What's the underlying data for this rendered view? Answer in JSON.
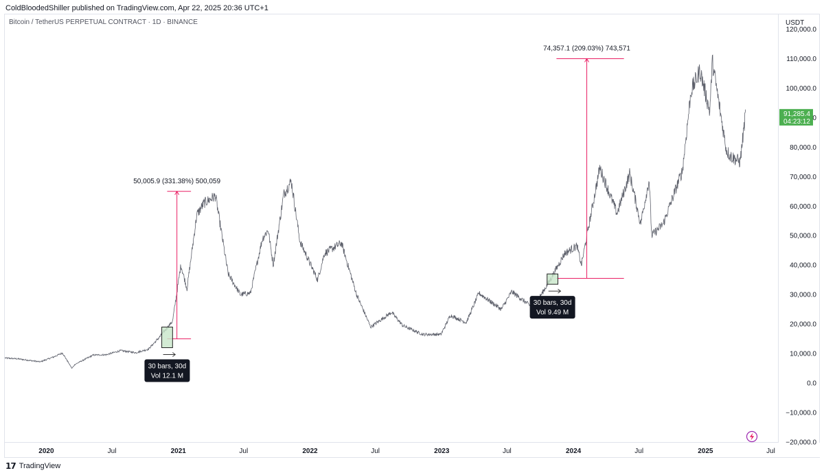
{
  "header": {
    "published": "ColdBloodedShiller published on TradingView.com, Apr 22, 2025 20:36 UTC+1"
  },
  "footer": {
    "brand": "TradingView",
    "logo_icon": "tradingview-logo-icon"
  },
  "colors": {
    "price_line": "#5d606b",
    "measure": "#e91e63",
    "box_fill": "#c8e6c9",
    "box_stroke": "#222222",
    "price_badge": "#4caf50",
    "tooltip_bg": "#131722"
  },
  "chart_data": {
    "type": "line",
    "title": "Bitcoin / TetherUS PERPETUAL CONTRACT · 1D · BINANCE",
    "currency": "USDT",
    "ylim": [
      -20000,
      125000
    ],
    "yticks": [
      -20000,
      -10000,
      0,
      10000,
      20000,
      30000,
      40000,
      50000,
      60000,
      70000,
      80000,
      90000,
      100000,
      110000,
      120000
    ],
    "ytick_labels": [
      "−20,000.0",
      "−10,000.0",
      "0.0",
      "10,000.0",
      "20,000.0",
      "30,000.0",
      "40,000.0",
      "50,000.0",
      "60,000.0",
      "70,000.0",
      "80,000.0",
      "90,000.0",
      "100,000.0",
      "110,000.0",
      "120,000.0"
    ],
    "xlim": [
      "2019-09-08",
      "2025-07-21"
    ],
    "xticks": [
      {
        "label": "2020",
        "date": "2020-01-01",
        "year": true
      },
      {
        "label": "Jul",
        "date": "2020-07-01",
        "year": false
      },
      {
        "label": "2021",
        "date": "2021-01-01",
        "year": true
      },
      {
        "label": "Jul",
        "date": "2021-07-01",
        "year": false
      },
      {
        "label": "2022",
        "date": "2022-01-01",
        "year": true
      },
      {
        "label": "Jul",
        "date": "2022-07-01",
        "year": false
      },
      {
        "label": "2023",
        "date": "2023-01-01",
        "year": true
      },
      {
        "label": "Jul",
        "date": "2023-07-01",
        "year": false
      },
      {
        "label": "2024",
        "date": "2024-01-01",
        "year": true
      },
      {
        "label": "Jul",
        "date": "2024-07-01",
        "year": false
      },
      {
        "label": "2025",
        "date": "2025-01-01",
        "year": true
      },
      {
        "label": "Jul",
        "date": "2025-07-01",
        "year": false
      }
    ],
    "series": [
      {
        "x": [
          "2019-09-08",
          "2019-10-15",
          "2019-12-15",
          "2020-01-20",
          "2020-02-15",
          "2020-03-12",
          "2020-03-20",
          "2020-05-10",
          "2020-06-15",
          "2020-07-25",
          "2020-09-05",
          "2020-10-10",
          "2020-11-10",
          "2020-12-16",
          "2021-01-08",
          "2021-01-25",
          "2021-02-21",
          "2021-03-13",
          "2021-04-14",
          "2021-05-19",
          "2021-06-22",
          "2021-07-20",
          "2021-08-22",
          "2021-09-07",
          "2021-09-21",
          "2021-10-20",
          "2021-11-10",
          "2021-12-04",
          "2022-01-22",
          "2022-02-10",
          "2022-03-29",
          "2022-05-10",
          "2022-06-18",
          "2022-08-15",
          "2022-09-15",
          "2022-11-09",
          "2022-12-30",
          "2023-01-25",
          "2023-03-10",
          "2023-04-14",
          "2023-06-15",
          "2023-07-14",
          "2023-09-11",
          "2023-10-24",
          "2023-12-08",
          "2024-01-11",
          "2024-01-23",
          "2024-03-14",
          "2024-05-01",
          "2024-06-05",
          "2024-07-05",
          "2024-07-29",
          "2024-08-05",
          "2024-09-06",
          "2024-10-29",
          "2024-11-22",
          "2024-12-17",
          "2025-01-13",
          "2025-01-20",
          "2025-02-28",
          "2025-03-11",
          "2025-04-07",
          "2025-04-22"
        ],
        "values": [
          8500,
          8200,
          7200,
          8800,
          10200,
          5000,
          6300,
          9500,
          9600,
          11000,
          10300,
          11500,
          15600,
          21000,
          40000,
          32000,
          57000,
          61000,
          63500,
          37000,
          30000,
          30500,
          49000,
          52000,
          40000,
          64000,
          68500,
          48000,
          35000,
          44000,
          47500,
          30000,
          19000,
          24000,
          19500,
          16500,
          16500,
          23000,
          20500,
          30500,
          25000,
          31000,
          25500,
          34000,
          44000,
          46500,
          40000,
          73000,
          57500,
          71000,
          54000,
          69000,
          50000,
          54000,
          72000,
          99000,
          106000,
          92000,
          109000,
          79000,
          77000,
          75000,
          91285
        ]
      }
    ],
    "price_badge": {
      "value": 91285.4,
      "price_label": "91,285.4",
      "countdown_label": "04:23:12"
    },
    "annotations": [
      {
        "kind": "measure",
        "label": "50,005.9 (331.38%) 500,059",
        "x": "2020-12-28",
        "y_from": 15000,
        "y_to": 65000,
        "x_left": "2020-12-01",
        "x_right": "2021-02-05"
      },
      {
        "kind": "measure",
        "label": "74,357.1 (209.03%) 743,571",
        "x": "2024-02-07",
        "y_from": 35500,
        "y_to": 110000,
        "x_left": "2023-11-15",
        "x_right": "2024-05-20"
      },
      {
        "kind": "range_box",
        "x_from": "2020-11-16",
        "x_to": "2020-12-16",
        "y_from": 12000,
        "y_to": 19000,
        "tooltip_bars": "30 bars, 30d",
        "tooltip_vol": "Vol 12.1 M"
      },
      {
        "kind": "range_box",
        "x_from": "2023-10-20",
        "x_to": "2023-11-19",
        "y_from": 33500,
        "y_to": 37000,
        "tooltip_bars": "30 bars, 30d",
        "tooltip_vol": "Vol 9.49 M"
      }
    ]
  }
}
